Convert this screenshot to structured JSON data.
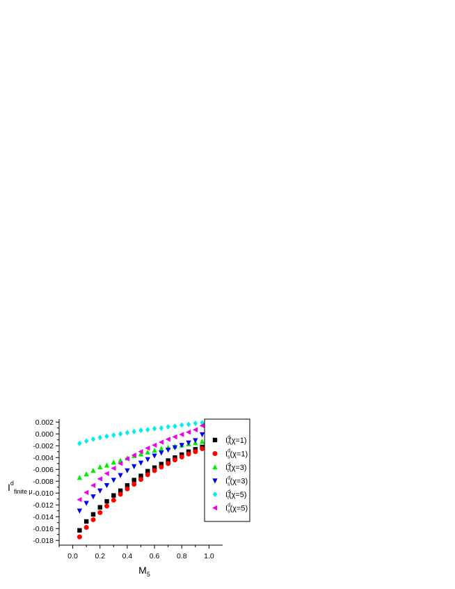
{
  "chart_data": {
    "type": "scatter",
    "xlabel": {
      "main": "M",
      "sub": "5"
    },
    "ylabel": {
      "main": "I",
      "sup": "d",
      "sub": "finite μ"
    },
    "xlim": [
      -0.1,
      1.1
    ],
    "ylim": [
      -0.0188,
      0.0025
    ],
    "xticks": [
      "0.0",
      "0.2",
      "0.4",
      "0.6",
      "0.8",
      "1.0"
    ],
    "yticks": [
      "0.002",
      "0.000",
      "-0.002",
      "-0.004",
      "-0.006",
      "-0.008",
      "-0.010",
      "-0.012",
      "-0.014",
      "-0.016",
      "-0.018"
    ],
    "grid": false,
    "legend_position": "right",
    "x": [
      0.05,
      0.1,
      0.15,
      0.2,
      0.25,
      0.3,
      0.35,
      0.4,
      0.45,
      0.5,
      0.55,
      0.6,
      0.65,
      0.7,
      0.75,
      0.8,
      0.85,
      0.9,
      0.95
    ],
    "series": [
      {
        "name": "I_t^d(χ=1)",
        "label_main": "I",
        "label_sub": "t",
        "label_sup": "d",
        "label_rest": "(χ=1)",
        "marker": "square",
        "color": "#000000",
        "values": [
          -0.0163,
          -0.0148,
          -0.0136,
          -0.0124,
          -0.0114,
          -0.0104,
          -0.0096,
          -0.0087,
          -0.0078,
          -0.0071,
          -0.0063,
          -0.0057,
          -0.0051,
          -0.0045,
          -0.004,
          -0.0035,
          -0.003,
          -0.0026,
          -0.0022
        ]
      },
      {
        "name": "I_s^d(χ=1)",
        "label_main": "I",
        "label_sub": "s",
        "label_sup": "d",
        "label_rest": "(χ=1)",
        "marker": "circle",
        "color": "#ff0000",
        "values": [
          -0.0174,
          -0.0158,
          -0.0145,
          -0.0133,
          -0.0122,
          -0.0112,
          -0.0102,
          -0.0093,
          -0.0085,
          -0.0077,
          -0.0069,
          -0.0062,
          -0.0056,
          -0.005,
          -0.0044,
          -0.0039,
          -0.0034,
          -0.003,
          -0.0025
        ]
      },
      {
        "name": "I_t^d(χ=3)",
        "label_main": "I",
        "label_sub": "t",
        "label_sup": "d",
        "label_rest": "(χ=3)",
        "marker": "triangle-up",
        "color": "#00ee00",
        "values": [
          -0.0074,
          -0.0068,
          -0.0062,
          -0.0056,
          -0.0053,
          -0.0048,
          -0.0045,
          -0.0041,
          -0.0037,
          -0.0034,
          -0.0031,
          -0.0028,
          -0.0025,
          -0.0023,
          -0.0021,
          -0.0019,
          -0.0017,
          -0.0015,
          -0.0013
        ]
      },
      {
        "name": "I_s^d(χ=3)",
        "label_main": "I",
        "label_sub": "s",
        "label_sup": "d",
        "label_rest": "(χ=3)",
        "marker": "triangle-down",
        "color": "#0000ee",
        "values": [
          -0.013,
          -0.0117,
          -0.0106,
          -0.0096,
          -0.0087,
          -0.0078,
          -0.007,
          -0.0062,
          -0.0055,
          -0.0049,
          -0.0043,
          -0.0037,
          -0.0032,
          -0.0027,
          -0.0023,
          -0.0019,
          -0.0015,
          -0.0011,
          -0.0001
        ]
      },
      {
        "name": "I_t^d(χ=5)",
        "label_main": "I",
        "label_sub": "t",
        "label_sup": "d",
        "label_rest": "(χ=5)",
        "marker": "diamond",
        "color": "#00eeee",
        "values": [
          -0.0016,
          -0.0012,
          -0.0009,
          -0.0006,
          -0.0004,
          -0.0002,
          0.0,
          0.0002,
          0.0004,
          0.0006,
          0.0007,
          0.0009,
          0.001,
          0.0012,
          0.0013,
          0.0015,
          0.0016,
          0.0018,
          0.0019
        ]
      },
      {
        "name": "I_s^d(χ=5)",
        "label_main": "I",
        "label_sub": "s",
        "label_sup": "d",
        "label_rest": "(χ=5)",
        "marker": "triangle-left",
        "color": "#ee00ee",
        "values": [
          -0.0111,
          -0.0099,
          -0.0087,
          -0.0076,
          -0.0067,
          -0.0058,
          -0.005,
          -0.0042,
          -0.0036,
          -0.003,
          -0.0024,
          -0.0019,
          -0.0014,
          -0.0009,
          -0.0005,
          -0.0001,
          0.0003,
          0.0007,
          0.0014
        ]
      }
    ]
  }
}
